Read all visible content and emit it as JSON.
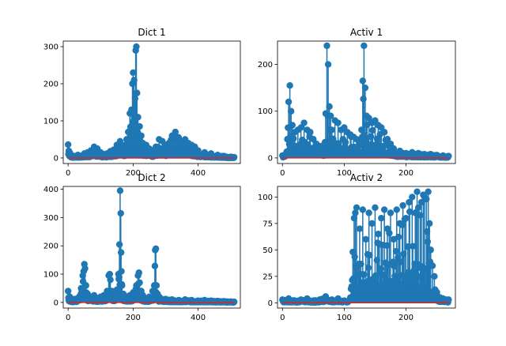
{
  "chart_data": [
    {
      "type": "stem",
      "title": "Dict 1",
      "xlim": [
        -15,
        530
      ],
      "ylim": [
        -15,
        315
      ],
      "xticks": [
        0,
        200,
        400
      ],
      "yticks": [
        0,
        100,
        200,
        300
      ],
      "xtick_labels": [
        "0",
        "200",
        "400"
      ],
      "ytick_labels": [
        "0",
        "100",
        "200",
        "300"
      ],
      "baseline": 0,
      "n_points": 512,
      "peaks": [
        [
          0,
          36
        ],
        [
          5,
          15
        ],
        [
          10,
          6
        ],
        [
          30,
          8
        ],
        [
          50,
          12
        ],
        [
          60,
          15
        ],
        [
          70,
          20
        ],
        [
          80,
          30
        ],
        [
          90,
          25
        ],
        [
          100,
          15
        ],
        [
          110,
          10
        ],
        [
          120,
          12
        ],
        [
          130,
          18
        ],
        [
          140,
          22
        ],
        [
          150,
          35
        ],
        [
          160,
          45
        ],
        [
          170,
          30
        ],
        [
          180,
          50
        ],
        [
          185,
          70
        ],
        [
          190,
          120
        ],
        [
          195,
          130
        ],
        [
          198,
          200
        ],
        [
          200,
          230
        ],
        [
          203,
          210
        ],
        [
          206,
          160
        ],
        [
          208,
          290
        ],
        [
          210,
          300
        ],
        [
          212,
          175
        ],
        [
          215,
          110
        ],
        [
          220,
          85
        ],
        [
          225,
          60
        ],
        [
          230,
          40
        ],
        [
          240,
          35
        ],
        [
          250,
          25
        ],
        [
          260,
          20
        ],
        [
          270,
          30
        ],
        [
          280,
          50
        ],
        [
          290,
          45
        ],
        [
          300,
          35
        ],
        [
          310,
          40
        ],
        [
          320,
          60
        ],
        [
          330,
          70
        ],
        [
          340,
          55
        ],
        [
          350,
          45
        ],
        [
          360,
          50
        ],
        [
          370,
          40
        ],
        [
          380,
          35
        ],
        [
          390,
          30
        ],
        [
          400,
          20
        ],
        [
          420,
          15
        ],
        [
          440,
          12
        ],
        [
          460,
          8
        ],
        [
          480,
          5
        ],
        [
          500,
          3
        ],
        [
          511,
          2
        ]
      ]
    },
    {
      "type": "stem",
      "title": "Activ 1",
      "xlim": [
        -8,
        280
      ],
      "ylim": [
        -12,
        250
      ],
      "xticks": [
        0,
        100,
        200
      ],
      "yticks": [
        0,
        100,
        200
      ],
      "xtick_labels": [
        "0",
        "100",
        "200"
      ],
      "ytick_labels": [
        "0",
        "100",
        "200"
      ],
      "baseline": 0,
      "n_points": 270,
      "peaks": [
        [
          0,
          5
        ],
        [
          5,
          8
        ],
        [
          8,
          40
        ],
        [
          10,
          120
        ],
        [
          12,
          155
        ],
        [
          14,
          100
        ],
        [
          16,
          70
        ],
        [
          20,
          55
        ],
        [
          25,
          60
        ],
        [
          30,
          65
        ],
        [
          35,
          75
        ],
        [
          40,
          60
        ],
        [
          45,
          55
        ],
        [
          50,
          40
        ],
        [
          55,
          30
        ],
        [
          60,
          25
        ],
        [
          65,
          20
        ],
        [
          68,
          30
        ],
        [
          70,
          95
        ],
        [
          72,
          240
        ],
        [
          74,
          200
        ],
        [
          76,
          110
        ],
        [
          78,
          90
        ],
        [
          80,
          60
        ],
        [
          85,
          80
        ],
        [
          90,
          75
        ],
        [
          95,
          60
        ],
        [
          100,
          65
        ],
        [
          105,
          55
        ],
        [
          110,
          50
        ],
        [
          115,
          45
        ],
        [
          120,
          40
        ],
        [
          125,
          35
        ],
        [
          128,
          60
        ],
        [
          130,
          165
        ],
        [
          132,
          240
        ],
        [
          134,
          150
        ],
        [
          136,
          90
        ],
        [
          140,
          85
        ],
        [
          145,
          75
        ],
        [
          150,
          80
        ],
        [
          155,
          70
        ],
        [
          160,
          65
        ],
        [
          165,
          55
        ],
        [
          170,
          40
        ],
        [
          175,
          30
        ],
        [
          180,
          20
        ],
        [
          190,
          15
        ],
        [
          200,
          10
        ],
        [
          210,
          12
        ],
        [
          220,
          10
        ],
        [
          230,
          8
        ],
        [
          240,
          8
        ],
        [
          250,
          6
        ],
        [
          260,
          5
        ],
        [
          269,
          4
        ]
      ]
    },
    {
      "type": "stem",
      "title": "Dict 2",
      "xlim": [
        -15,
        530
      ],
      "ylim": [
        -20,
        410
      ],
      "xticks": [
        0,
        200,
        400
      ],
      "yticks": [
        0,
        100,
        200,
        300,
        400
      ],
      "xtick_labels": [
        "0",
        "200",
        "400"
      ],
      "ytick_labels": [
        "0",
        "100",
        "200",
        "300",
        "400"
      ],
      "baseline": 0,
      "n_points": 512,
      "peaks": [
        [
          0,
          40
        ],
        [
          5,
          20
        ],
        [
          10,
          8
        ],
        [
          20,
          12
        ],
        [
          30,
          15
        ],
        [
          40,
          50
        ],
        [
          45,
          95
        ],
        [
          48,
          110
        ],
        [
          50,
          135
        ],
        [
          52,
          120
        ],
        [
          55,
          60
        ],
        [
          60,
          30
        ],
        [
          70,
          20
        ],
        [
          80,
          25
        ],
        [
          90,
          15
        ],
        [
          100,
          20
        ],
        [
          110,
          25
        ],
        [
          120,
          40
        ],
        [
          125,
          95
        ],
        [
          128,
          100
        ],
        [
          130,
          80
        ],
        [
          135,
          40
        ],
        [
          140,
          30
        ],
        [
          150,
          45
        ],
        [
          155,
          100
        ],
        [
          158,
          205
        ],
        [
          160,
          395
        ],
        [
          162,
          315
        ],
        [
          164,
          110
        ],
        [
          166,
          60
        ],
        [
          170,
          30
        ],
        [
          180,
          20
        ],
        [
          190,
          25
        ],
        [
          200,
          35
        ],
        [
          210,
          60
        ],
        [
          215,
          95
        ],
        [
          218,
          105
        ],
        [
          220,
          70
        ],
        [
          225,
          40
        ],
        [
          230,
          25
        ],
        [
          240,
          15
        ],
        [
          250,
          20
        ],
        [
          260,
          40
        ],
        [
          265,
          60
        ],
        [
          268,
          185
        ],
        [
          270,
          190
        ],
        [
          272,
          60
        ],
        [
          275,
          30
        ],
        [
          280,
          20
        ],
        [
          300,
          12
        ],
        [
          320,
          10
        ],
        [
          340,
          8
        ],
        [
          360,
          10
        ],
        [
          380,
          8
        ],
        [
          400,
          6
        ],
        [
          420,
          8
        ],
        [
          440,
          6
        ],
        [
          460,
          5
        ],
        [
          480,
          4
        ],
        [
          500,
          3
        ],
        [
          511,
          2
        ]
      ]
    },
    {
      "type": "stem",
      "title": "Activ 2",
      "xlim": [
        -8,
        280
      ],
      "ylim": [
        -5,
        110
      ],
      "xticks": [
        0,
        100,
        200
      ],
      "yticks": [
        0,
        25,
        50,
        75,
        100
      ],
      "xtick_labels": [
        "0",
        "100",
        "200"
      ],
      "ytick_labels": [
        "0",
        "25",
        "50",
        "75",
        "100"
      ],
      "baseline": 0,
      "n_points": 270,
      "peaks": [
        [
          0,
          3
        ],
        [
          10,
          4
        ],
        [
          20,
          2
        ],
        [
          30,
          3
        ],
        [
          40,
          4
        ],
        [
          50,
          2
        ],
        [
          60,
          3
        ],
        [
          70,
          6
        ],
        [
          80,
          3
        ],
        [
          90,
          4
        ],
        [
          100,
          2
        ],
        [
          110,
          5
        ],
        [
          114,
          48
        ],
        [
          116,
          80
        ],
        [
          118,
          85
        ],
        [
          120,
          90
        ],
        [
          125,
          70
        ],
        [
          130,
          88
        ],
        [
          135,
          60
        ],
        [
          140,
          85
        ],
        [
          145,
          75
        ],
        [
          150,
          90
        ],
        [
          155,
          65
        ],
        [
          160,
          80
        ],
        [
          165,
          88
        ],
        [
          170,
          70
        ],
        [
          175,
          85
        ],
        [
          180,
          60
        ],
        [
          185,
          88
        ],
        [
          190,
          75
        ],
        [
          195,
          92
        ],
        [
          200,
          80
        ],
        [
          205,
          95
        ],
        [
          210,
          100
        ],
        [
          215,
          85
        ],
        [
          218,
          105
        ],
        [
          220,
          90
        ],
        [
          225,
          95
        ],
        [
          228,
          102
        ],
        [
          230,
          100
        ],
        [
          233,
          98
        ],
        [
          236,
          105
        ],
        [
          238,
          75
        ],
        [
          240,
          50
        ],
        [
          243,
          35
        ],
        [
          246,
          25
        ],
        [
          250,
          10
        ],
        [
          255,
          5
        ],
        [
          260,
          4
        ],
        [
          265,
          3
        ],
        [
          269,
          3
        ]
      ]
    }
  ]
}
